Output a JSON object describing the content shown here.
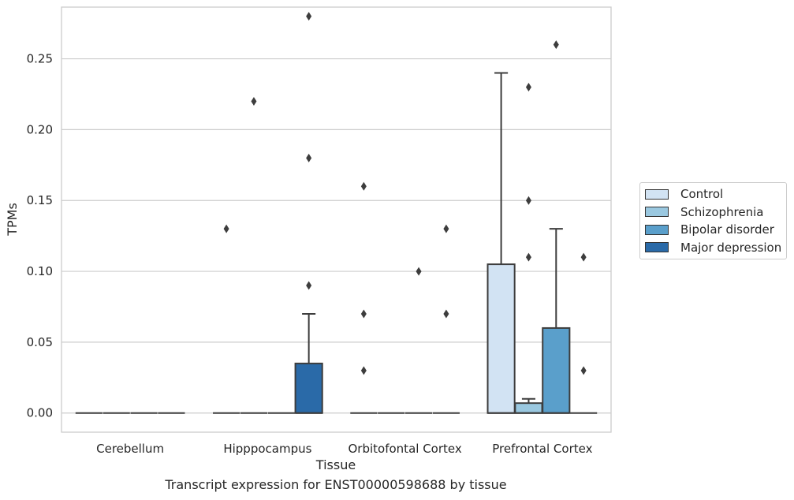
{
  "chart_data": {
    "type": "box",
    "caption": "Transcript expression for ENST00000598688 by tissue",
    "xlabel": "Tissue",
    "ylabel": "TPMs",
    "ylim": [
      -0.0135,
      0.2865
    ],
    "yticks": [
      "0.00",
      "0.05",
      "0.10",
      "0.15",
      "0.20",
      "0.25"
    ],
    "categories": [
      "Cerebellum",
      "Hipppocampus",
      "Orbitofontal Cortex",
      "Prefrontal Cortex"
    ],
    "grid": true,
    "legend_position": "right",
    "series": [
      {
        "name": "Control",
        "color": "#d2e3f3",
        "boxes": [
          {
            "q1": 0,
            "median": 0,
            "q3": 0,
            "whisker_low": 0,
            "whisker_high": 0,
            "outliers": []
          },
          {
            "q1": 0,
            "median": 0,
            "q3": 0,
            "whisker_low": 0,
            "whisker_high": 0,
            "outliers": [
              0.13
            ]
          },
          {
            "q1": 0,
            "median": 0,
            "q3": 0,
            "whisker_low": 0,
            "whisker_high": 0,
            "outliers": [
              0.03,
              0.07,
              0.16
            ]
          },
          {
            "q1": 0,
            "median": 0,
            "q3": 0.105,
            "whisker_low": 0,
            "whisker_high": 0.24,
            "outliers": []
          }
        ]
      },
      {
        "name": "Schizophrenia",
        "color": "#9ac8e0",
        "boxes": [
          {
            "q1": 0,
            "median": 0,
            "q3": 0,
            "whisker_low": 0,
            "whisker_high": 0,
            "outliers": []
          },
          {
            "q1": 0,
            "median": 0,
            "q3": 0,
            "whisker_low": 0,
            "whisker_high": 0,
            "outliers": [
              0.22
            ]
          },
          {
            "q1": 0,
            "median": 0,
            "q3": 0,
            "whisker_low": 0,
            "whisker_high": 0,
            "outliers": []
          },
          {
            "q1": 0,
            "median": 0,
            "q3": 0.007,
            "whisker_low": 0,
            "whisker_high": 0.01,
            "outliers": [
              0.11,
              0.15,
              0.23
            ]
          }
        ]
      },
      {
        "name": "Bipolar disorder",
        "color": "#5a9fcb",
        "boxes": [
          {
            "q1": 0,
            "median": 0,
            "q3": 0,
            "whisker_low": 0,
            "whisker_high": 0,
            "outliers": []
          },
          {
            "q1": 0,
            "median": 0,
            "q3": 0,
            "whisker_low": 0,
            "whisker_high": 0,
            "outliers": []
          },
          {
            "q1": 0,
            "median": 0,
            "q3": 0,
            "whisker_low": 0,
            "whisker_high": 0,
            "outliers": [
              0.1
            ]
          },
          {
            "q1": 0,
            "median": 0,
            "q3": 0.06,
            "whisker_low": 0,
            "whisker_high": 0.13,
            "outliers": [
              0.26
            ]
          }
        ]
      },
      {
        "name": "Major depression",
        "color": "#2a6aa8",
        "boxes": [
          {
            "q1": 0,
            "median": 0,
            "q3": 0,
            "whisker_low": 0,
            "whisker_high": 0,
            "outliers": []
          },
          {
            "q1": 0,
            "median": 0,
            "q3": 0.035,
            "whisker_low": 0,
            "whisker_high": 0.07,
            "outliers": [
              0.09,
              0.18,
              0.28
            ]
          },
          {
            "q1": 0,
            "median": 0,
            "q3": 0,
            "whisker_low": 0,
            "whisker_high": 0,
            "outliers": [
              0.07,
              0.13
            ]
          },
          {
            "q1": 0,
            "median": 0,
            "q3": 0,
            "whisker_low": 0,
            "whisker_high": 0,
            "outliers": [
              0.03,
              0.11
            ]
          }
        ]
      }
    ]
  }
}
